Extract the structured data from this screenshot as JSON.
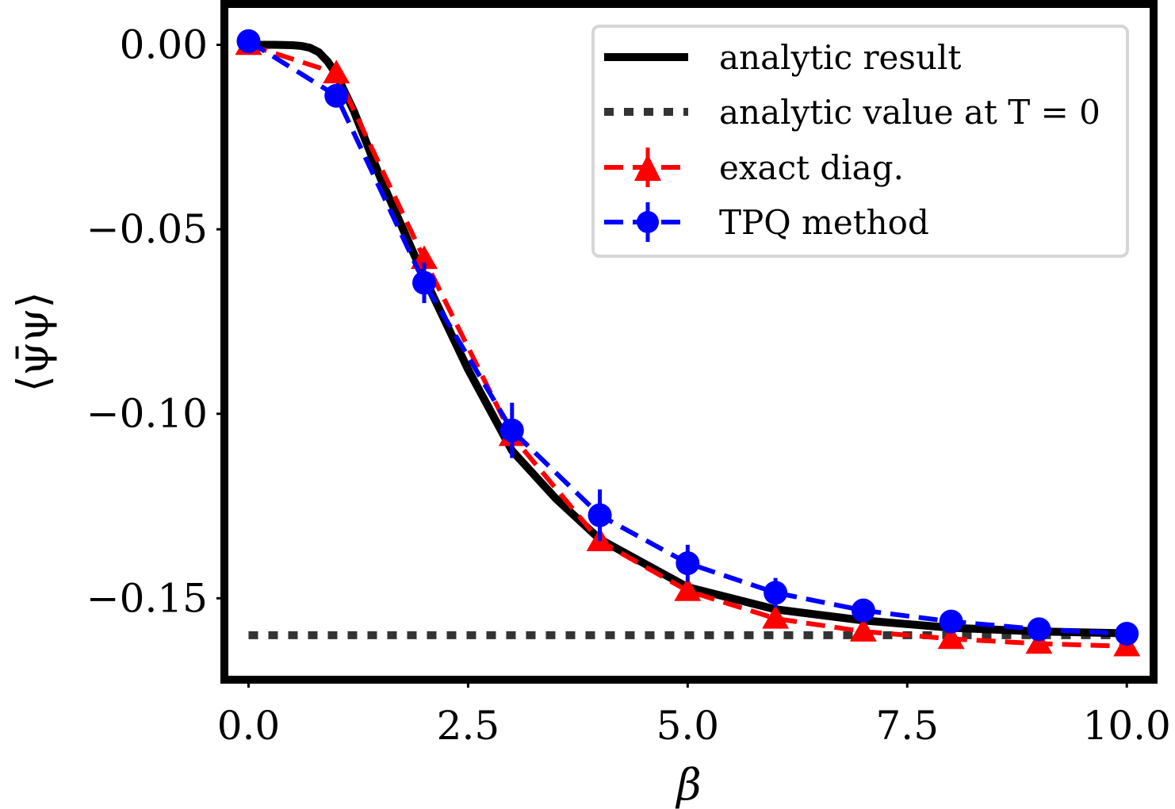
{
  "chart_data": {
    "type": "line",
    "title": "",
    "xlabel": "β",
    "ylabel": "⟨ψ̄ψ⟩",
    "xlim": [
      -0.23,
      10.26
    ],
    "ylim": [
      -0.171,
      0.01
    ],
    "xticks": [
      0,
      2.5,
      5,
      7.5,
      10
    ],
    "xtick_labels": [
      "0.0",
      "2.5",
      "5.0",
      "7.5",
      "10.0"
    ],
    "yticks": [
      0,
      -0.05,
      -0.1,
      -0.15
    ],
    "ytick_labels": [
      "0.00",
      "−0.05",
      "−0.10",
      "−0.15"
    ],
    "grid": false,
    "legend_placement": "top-right",
    "series": [
      {
        "name": "analytic result",
        "style": "solid",
        "color": "#000000",
        "x": [
          0,
          0.3,
          0.5,
          0.6,
          0.7,
          0.8,
          0.9,
          1.0,
          1.2,
          1.5,
          2.0,
          2.5,
          3.0,
          3.5,
          4.0,
          5.0,
          6.0,
          7.0,
          8.0,
          9.0,
          10.0
        ],
        "y": [
          0,
          0,
          -0.0001,
          -0.0003,
          -0.0008,
          -0.002,
          -0.0045,
          -0.008,
          -0.018,
          -0.036,
          -0.063,
          -0.088,
          -0.11,
          -0.123,
          -0.134,
          -0.147,
          -0.153,
          -0.156,
          -0.158,
          -0.159,
          -0.1595
        ]
      },
      {
        "name": "analytic value at T = 0",
        "style": "dotted",
        "color": "#333333",
        "x": [
          0,
          10
        ],
        "y": [
          -0.16,
          -0.16
        ]
      },
      {
        "name": "exact diag.",
        "style": "dashed",
        "marker": "triangle",
        "color": "#ff0000",
        "x": [
          0,
          1,
          2,
          3,
          4,
          5,
          6,
          7,
          8,
          9,
          10
        ],
        "y": [
          0.0,
          -0.0077,
          -0.058,
          -0.106,
          -0.1345,
          -0.148,
          -0.1555,
          -0.159,
          -0.161,
          -0.1623,
          -0.163
        ]
      },
      {
        "name": "TPQ method",
        "style": "dashed",
        "marker": "circle",
        "color": "#0000ff",
        "x": [
          0,
          1,
          2,
          3,
          4,
          5,
          6,
          7,
          8,
          9,
          10
        ],
        "y": [
          0.001,
          -0.0138,
          -0.0645,
          -0.1045,
          -0.1275,
          -0.1405,
          -0.1485,
          -0.1533,
          -0.1563,
          -0.1584,
          -0.1596
        ],
        "yerr": [
          0,
          0.001,
          0.0055,
          0.0075,
          0.007,
          0.005,
          0.004,
          0.002,
          0.001,
          0.001,
          0.0005
        ]
      }
    ]
  }
}
